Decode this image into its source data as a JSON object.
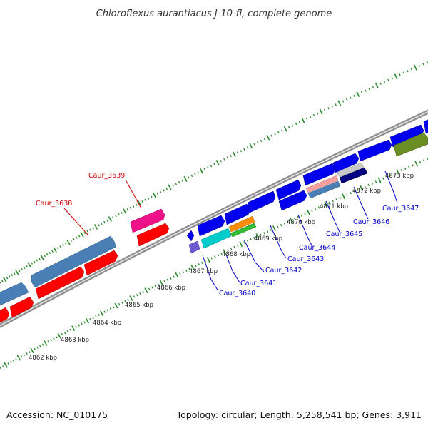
{
  "title": "Chloroflexus aurantiacus J-10-fl, complete genome",
  "footer": {
    "accession": "Accession: NC_010175",
    "summary": "Topology: circular; Length: 5,258,541 bp; Genes: 3,911"
  },
  "ticks": [
    "4862 kbp",
    "4863 kbp",
    "4864 kbp",
    "4865 kbp",
    "4866 kbp",
    "4867 kbp",
    "4868 kbp",
    "4869 kbp",
    "4870 kbp",
    "4871 kbp",
    "4872 kbp",
    "4873 kbp"
  ],
  "labels_top": [
    "Caur_3638",
    "Caur_3639"
  ],
  "labels_bottom": [
    "Caur_3640",
    "Caur_3641",
    "Caur_3642",
    "Caur_3643",
    "Caur_3644",
    "Caur_3645",
    "Caur_3646",
    "Caur_3647"
  ],
  "colors": {
    "label_top": "#cc0000",
    "label_bottom": "#0000cc",
    "forward_cds": "#ff0000",
    "reverse_cds": "#0000ff",
    "steelblue_feature": "#4682b4",
    "backbone": "#999999",
    "tick": "#2a8a2a"
  }
}
